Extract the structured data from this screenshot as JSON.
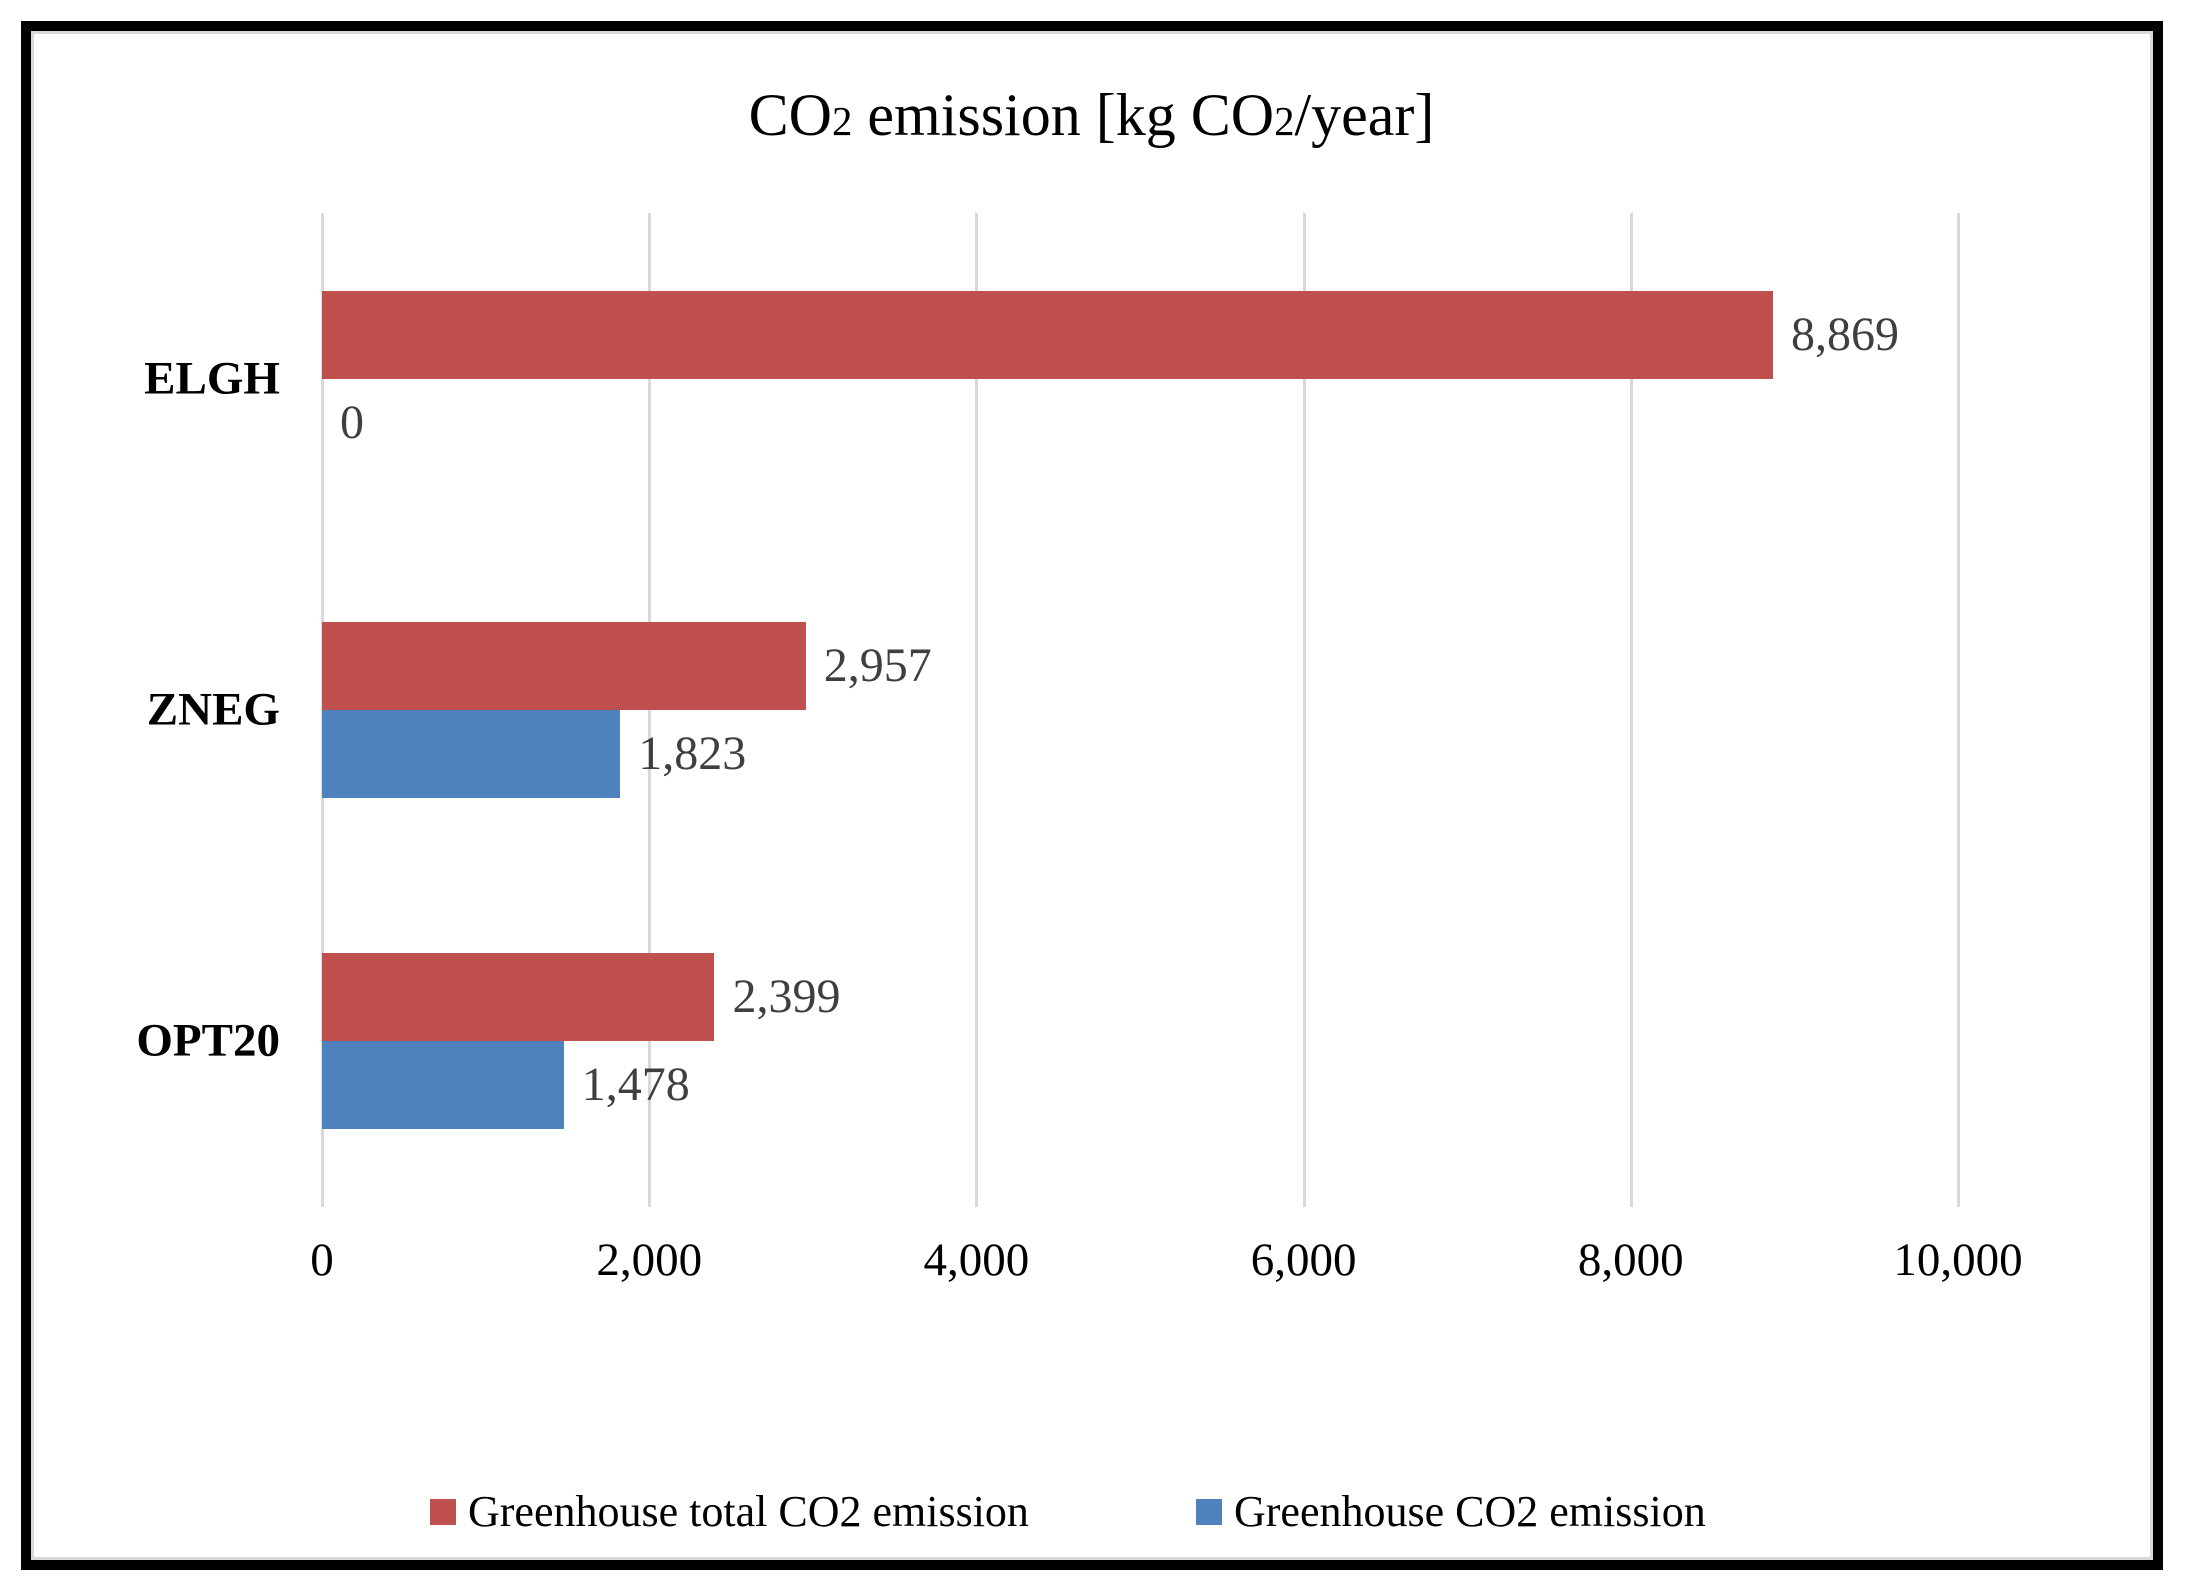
{
  "chart_data": {
    "type": "bar",
    "orientation": "horizontal",
    "title": "CO2 emission [kg CO2/year]",
    "title_parts": {
      "p1": "CO",
      "sub1": "2",
      "p2": " emission [kg CO",
      "sub2": "2",
      "p3": "/year]"
    },
    "categories": [
      "ELGH",
      "ZNEG",
      "OPT20"
    ],
    "series": [
      {
        "name": "Greenhouse total CO2 emission",
        "color": "#C0504D",
        "values": [
          8869,
          2957,
          2399
        ],
        "labels": [
          "8,869",
          "2,957",
          "2,399"
        ]
      },
      {
        "name": "Greenhouse CO2 emission",
        "color": "#4F81BD",
        "values": [
          0,
          1823,
          1478
        ],
        "labels": [
          "0",
          "1,823",
          "1,478"
        ]
      }
    ],
    "x_ticks": [
      "0",
      "2,000",
      "4,000",
      "6,000",
      "8,000",
      "10,000"
    ],
    "x_tick_values": [
      0,
      2000,
      4000,
      6000,
      8000,
      10000
    ],
    "xlim": [
      0,
      10000
    ],
    "grid": true,
    "legend_position": "bottom"
  },
  "colors": {
    "series_total": "#C0504D",
    "series_greenhouse": "#4F81BD",
    "gridline": "#d9d9d9",
    "data_label": "#3f3f3f",
    "frame_border": "#000000",
    "frame_inner_border": "#d9d9d9"
  }
}
